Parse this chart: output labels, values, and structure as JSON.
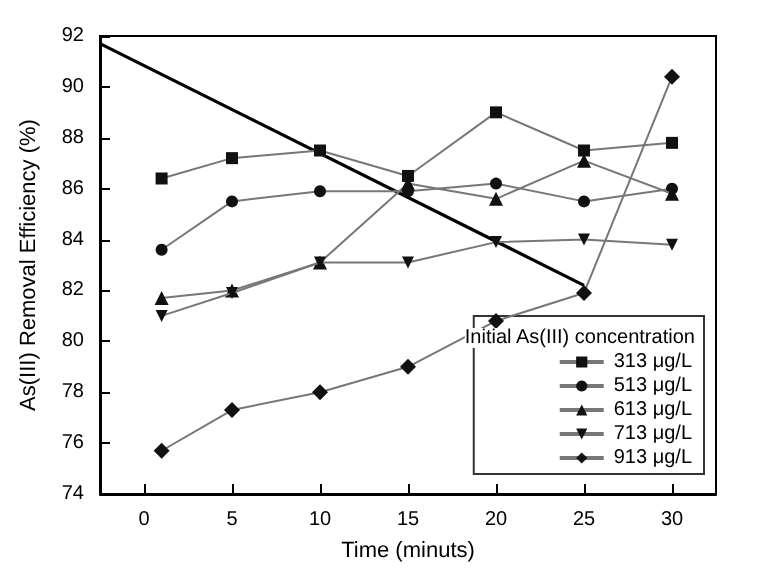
{
  "chart_data": {
    "type": "line",
    "xlabel": "Time (minuts)",
    "ylabel": "As(III) Removal Efficiency (%)",
    "legend_title": "Initial As(III) concentration",
    "legend": "bottom right",
    "grid": false,
    "x": [
      1,
      5,
      10,
      15,
      20,
      25,
      30
    ],
    "xlim": [
      -2.5,
      32.5
    ],
    "xticks": [
      0,
      5,
      10,
      15,
      20,
      25,
      30
    ],
    "ylim": [
      74,
      92
    ],
    "yticks": [
      74,
      76,
      78,
      80,
      82,
      84,
      86,
      88,
      90,
      92
    ],
    "series": [
      {
        "name": "313 μg/L",
        "color": "#111111",
        "marker": "square",
        "values": [
          86.4,
          87.2,
          87.5,
          86.5,
          89.0,
          87.5,
          87.8
        ]
      },
      {
        "name": "513 μg/L",
        "color": "#111111",
        "marker": "circle",
        "values": [
          83.6,
          85.5,
          85.9,
          85.9,
          86.2,
          85.5,
          86.0
        ]
      },
      {
        "name": "613 μg/L",
        "color": "#111111",
        "marker": "triangle",
        "values": [
          81.7,
          82.0,
          83.1,
          86.2,
          85.6,
          87.1,
          85.8
        ]
      },
      {
        "name": "713 μg/L",
        "color": "#111111",
        "marker": "triangle-down",
        "values": [
          81.0,
          81.9,
          83.1,
          83.1,
          83.9,
          84.0,
          83.8
        ]
      },
      {
        "name": "913 μg/L",
        "color": "#111111",
        "marker": "diamond",
        "values": [
          75.7,
          77.3,
          78.0,
          79.0,
          80.8,
          81.9,
          90.4
        ]
      },
      {
        "type": "line",
        "color": "#000000",
        "marker": "none",
        "x": [
          -2.5,
          25
        ],
        "values": [
          91.7,
          82.2
        ]
      }
    ]
  }
}
